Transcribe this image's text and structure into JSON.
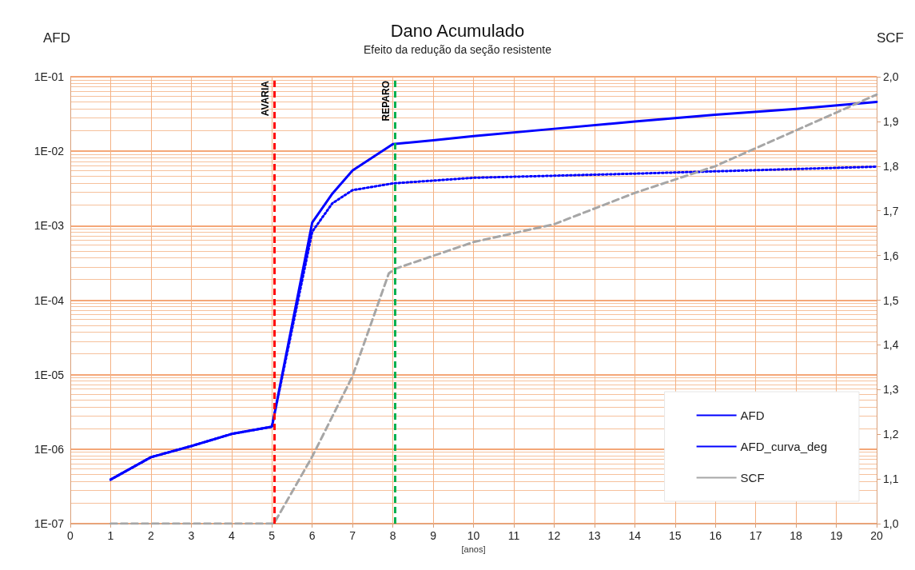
{
  "chart_data": {
    "type": "line",
    "title": "Dano Acumulado",
    "subtitle": "Efeito da redução da seção resistente",
    "xlabel": "[anos]",
    "ylabel": "AFD",
    "y2label": "SCF",
    "log": "y",
    "grid": true,
    "legend": "bottom right",
    "marker": "none",
    "xlim": [
      0,
      20
    ],
    "xticks": [
      0,
      1,
      2,
      3,
      4,
      5,
      6,
      7,
      8,
      9,
      10,
      11,
      12,
      13,
      14,
      15,
      16,
      17,
      18,
      19,
      20
    ],
    "ylim": [
      1e-07,
      0.1
    ],
    "yticks": [
      {
        "value": 1e-07,
        "label": "1E-07"
      },
      {
        "value": 1e-06,
        "label": "1E-06"
      },
      {
        "value": 1e-05,
        "label": "1E-05"
      },
      {
        "value": 0.0001,
        "label": "1E-04"
      },
      {
        "value": 0.001,
        "label": "1E-03"
      },
      {
        "value": 0.01,
        "label": "1E-02"
      },
      {
        "value": 0.1,
        "label": "1E-01"
      }
    ],
    "y2lim": [
      1.0,
      2.0
    ],
    "y2ticks": [
      {
        "value": 1.0,
        "label": "1,0"
      },
      {
        "value": 1.1,
        "label": "1,1"
      },
      {
        "value": 1.2,
        "label": "1,2"
      },
      {
        "value": 1.3,
        "label": "1,3"
      },
      {
        "value": 1.4,
        "label": "1,4"
      },
      {
        "value": 1.5,
        "label": "1,5"
      },
      {
        "value": 1.6,
        "label": "1,6"
      },
      {
        "value": 1.7,
        "label": "1,7"
      },
      {
        "value": 1.8,
        "label": "1,8"
      },
      {
        "value": 1.9,
        "label": "1,9"
      },
      {
        "value": 2.0,
        "label": "2,0"
      }
    ],
    "series": [
      {
        "name": "AFD",
        "color": "#0000ff",
        "line_style": "solid",
        "x": [
          1,
          2,
          3,
          4,
          5,
          6,
          6.5,
          7,
          8,
          9,
          10,
          12,
          14,
          16,
          18,
          20
        ],
        "values": [
          3.9e-07,
          7.8e-07,
          1.1e-06,
          1.6e-06,
          2e-06,
          0.0011,
          0.0027,
          0.0055,
          0.0125,
          0.014,
          0.016,
          0.02,
          0.025,
          0.031,
          0.037,
          0.046
        ]
      },
      {
        "name": "AFD_curva_deg",
        "color": "#0000ff",
        "line_style": "dotted",
        "x": [
          1,
          2,
          3,
          4,
          5,
          6,
          6.5,
          7,
          8,
          10,
          14,
          20
        ],
        "values": [
          3.9e-07,
          7.8e-07,
          1.1e-06,
          1.6e-06,
          2e-06,
          0.00083,
          0.002,
          0.003,
          0.0037,
          0.0044,
          0.005,
          0.0062
        ]
      },
      {
        "name": "SCF",
        "color": "#a6a6a6",
        "line_style": "dashed",
        "axis": "y2",
        "x": [
          1,
          5,
          5.05,
          6,
          7,
          7.9,
          8.05,
          10,
          12,
          14,
          16,
          18,
          20
        ],
        "values": [
          1.0,
          1.0,
          1.0,
          1.15,
          1.33,
          1.56,
          1.57,
          1.63,
          1.67,
          1.74,
          1.8,
          1.88,
          1.96
        ]
      }
    ],
    "ref_lines": [
      {
        "axis": "x",
        "value": 5.05,
        "label": "AVARIA",
        "color": "#ff0000",
        "line_style": "dashed"
      },
      {
        "axis": "x",
        "value": 8.05,
        "label": "REPARO",
        "color": "#00b050",
        "line_style": "dashed"
      }
    ]
  }
}
